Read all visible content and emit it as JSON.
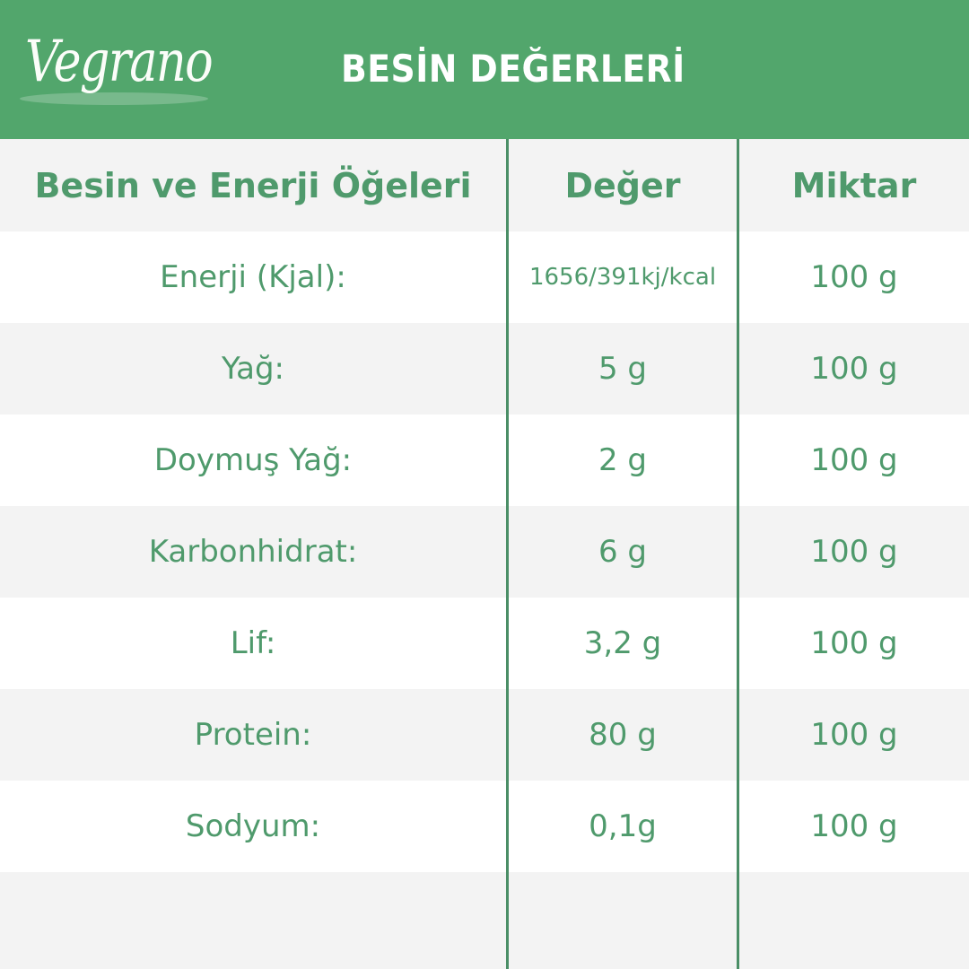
{
  "brand": {
    "logo": "Vegrano",
    "title": "BESİN DEĞERLERİ",
    "color": "#52a66c"
  },
  "table": {
    "headers": [
      "Besin ve Enerji Öğeleri",
      "Değer",
      "Miktar"
    ],
    "rows": [
      {
        "name": "Enerji (Kjal):",
        "value": "1656/391kj/kcal",
        "amount": "100 g"
      },
      {
        "name": "Yağ:",
        "value": "5 g",
        "amount": "100 g"
      },
      {
        "name": "Doymuş Yağ:",
        "value": "2 g",
        "amount": "100 g"
      },
      {
        "name": "Karbonhidrat:",
        "value": "6 g",
        "amount": "100 g"
      },
      {
        "name": "Lif:",
        "value": "3,2 g",
        "amount": "100 g"
      },
      {
        "name": "Protein:",
        "value": "80 g",
        "amount": "100 g"
      },
      {
        "name": "Sodyum:",
        "value": "0,1g",
        "amount": "100 g"
      }
    ]
  }
}
